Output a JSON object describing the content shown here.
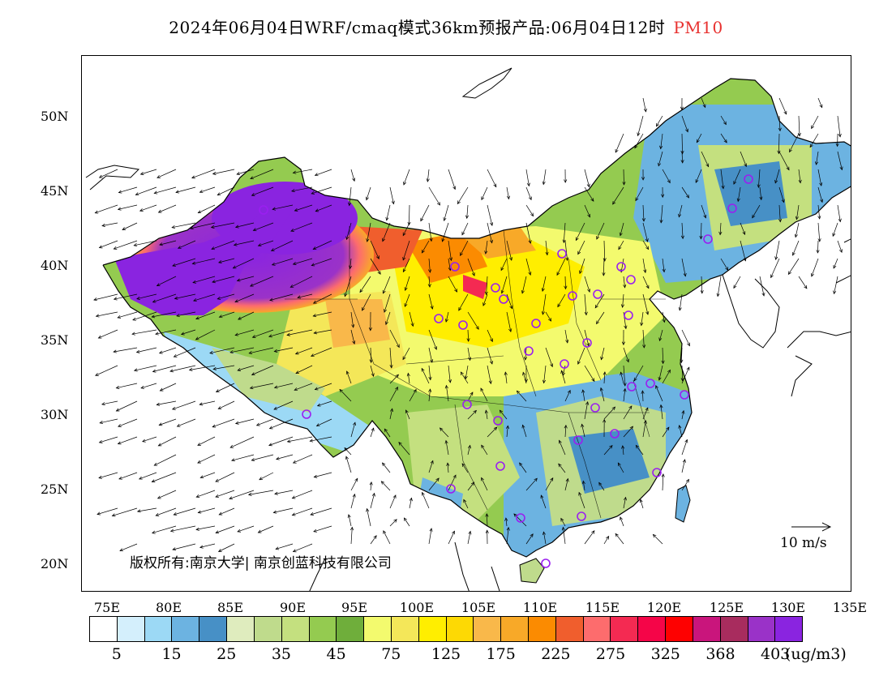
{
  "title": {
    "main": "2024年06月04日WRF/cmaq模式36km预报产品:06月04日12时",
    "variable": "PM10"
  },
  "map": {
    "lat_labels": [
      "50N",
      "45N",
      "40N",
      "35N",
      "30N",
      "25N",
      "20N"
    ],
    "lon_labels": [
      "75E",
      "80E",
      "85E",
      "90E",
      "95E",
      "100E",
      "105E",
      "110E",
      "115E",
      "120E",
      "125E",
      "130E",
      "135E"
    ],
    "copyright": "版权所有:南京大学| 南京创蓝科技有限公司",
    "reference_vector": "10 m/s"
  },
  "colorbar": {
    "colors": [
      "#ffffff",
      "#d4effc",
      "#9cd9f5",
      "#6cb3e1",
      "#4790c6",
      "#dfecbe",
      "#bfdb8c",
      "#c4e07f",
      "#94cb50",
      "#6fae3b",
      "#f3fa6e",
      "#f4e759",
      "#ffee00",
      "#fdd904",
      "#f9b84a",
      "#f8a928",
      "#fb8b01",
      "#f05e2d",
      "#fd6c6d",
      "#f42a52",
      "#f50548",
      "#fe0101",
      "#c9157c",
      "#a82c5e",
      "#9a32c8",
      "#8a24e0"
    ],
    "labels": [
      "5",
      "15",
      "25",
      "35",
      "45",
      "75",
      "125",
      "175",
      "225",
      "275",
      "325",
      "368",
      "403"
    ],
    "units": "(ug/m3)"
  },
  "stations": 34
}
